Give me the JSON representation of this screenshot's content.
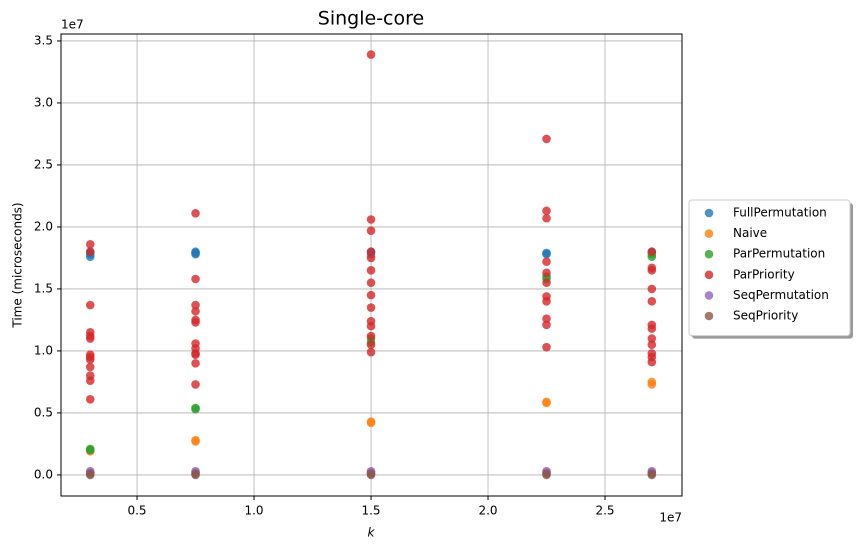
{
  "chart_data": {
    "type": "scatter",
    "title": "Single-core",
    "x_label": "k",
    "y_label": "Time (microseconds)",
    "x_offset": "1e7",
    "y_offset": "1e7",
    "xlim": [
      0.175,
      2.829
    ],
    "ylim": [
      -0.17,
      3.556
    ],
    "xticks": [
      0.5,
      {
        "value": 1.0,
        "label": "1.0"
      },
      1.5,
      {
        "value": 2.0,
        "label": "2.0"
      },
      2.5
    ],
    "yticks": [
      {
        "value": 0.0,
        "label": "0.0"
      },
      0.5,
      {
        "value": 1.0,
        "label": "1.0"
      },
      1.5,
      {
        "value": 2.0,
        "label": "2.0"
      },
      2.5,
      {
        "value": 3.0,
        "label": "3.0"
      },
      3.5
    ],
    "grid": true,
    "legend": "outside right",
    "series": [
      {
        "name": "FullPermutation",
        "color": "#1f77b4",
        "x": [
          0.3,
          0.3,
          0.3,
          0.75,
          0.75,
          0.75,
          1.5,
          1.5,
          2.25,
          2.25,
          2.7
        ],
        "values": [
          1.8,
          1.78,
          1.76,
          1.8,
          1.79,
          1.78,
          1.8,
          1.78,
          1.79,
          1.78,
          1.8
        ]
      },
      {
        "name": "Naive",
        "color": "#ff7f0e",
        "x": [
          0.3,
          0.3,
          0.75,
          0.75,
          1.5,
          1.5,
          2.25,
          2.25,
          2.7,
          2.7
        ],
        "values": [
          0.19,
          0.2,
          0.27,
          0.28,
          0.42,
          0.43,
          0.58,
          0.59,
          0.73,
          0.75
        ]
      },
      {
        "name": "ParPermutation",
        "color": "#2ca02c",
        "x": [
          0.3,
          0.3,
          0.75,
          0.75,
          1.5,
          1.5,
          2.25,
          2.25,
          2.7,
          2.7
        ],
        "values": [
          0.21,
          0.2,
          0.53,
          0.54,
          1.07,
          1.1,
          1.6,
          1.58,
          1.78,
          1.76
        ]
      },
      {
        "name": "ParPriority",
        "color": "#d62728",
        "x": [
          0.3,
          0.3,
          0.3,
          0.3,
          0.3,
          0.3,
          0.3,
          0.3,
          0.3,
          0.3,
          0.3,
          0.3,
          0.3,
          0.75,
          0.75,
          0.75,
          0.75,
          0.75,
          0.75,
          0.75,
          0.75,
          0.75,
          0.75,
          0.75,
          0.75,
          1.5,
          1.5,
          1.5,
          1.5,
          1.5,
          1.5,
          1.5,
          1.5,
          1.5,
          1.5,
          1.5,
          1.5,
          1.5,
          1.5,
          2.25,
          2.25,
          2.25,
          2.25,
          2.25,
          2.25,
          2.25,
          2.25,
          2.25,
          2.25,
          2.25,
          2.7,
          2.7,
          2.7,
          2.7,
          2.7,
          2.7,
          2.7,
          2.7,
          2.7,
          2.7,
          2.7,
          2.7
        ],
        "values": [
          1.86,
          1.8,
          1.37,
          1.15,
          1.12,
          1.1,
          0.97,
          0.95,
          0.93,
          0.87,
          0.8,
          0.76,
          0.61,
          2.11,
          1.58,
          1.37,
          1.32,
          1.25,
          1.23,
          1.06,
          1.02,
          0.98,
          0.97,
          0.9,
          0.73,
          3.39,
          2.06,
          1.97,
          1.8,
          1.75,
          1.65,
          1.55,
          1.45,
          1.35,
          1.24,
          1.2,
          1.12,
          1.05,
          0.99,
          2.71,
          2.13,
          2.07,
          1.72,
          1.63,
          1.55,
          1.44,
          1.4,
          1.26,
          1.21,
          1.03,
          1.8,
          1.67,
          1.65,
          1.5,
          1.4,
          1.21,
          1.18,
          1.1,
          1.05,
          0.98,
          0.95,
          0.91
        ]
      },
      {
        "name": "SeqPermutation",
        "color": "#9467bd",
        "x": [
          0.3,
          0.3,
          0.75,
          0.75,
          1.5,
          1.5,
          2.25,
          2.25,
          2.7,
          2.7
        ],
        "values": [
          0.03,
          0.02,
          0.03,
          0.02,
          0.03,
          0.02,
          0.03,
          0.02,
          0.03,
          0.02
        ]
      },
      {
        "name": "SeqPriority",
        "color": "#8c564b",
        "x": [
          0.3,
          0.3,
          0.75,
          0.75,
          1.5,
          1.5,
          2.25,
          2.25,
          2.7,
          2.7
        ],
        "values": [
          0.0,
          0.01,
          0.0,
          0.01,
          0.0,
          0.01,
          0.0,
          0.01,
          0.0,
          0.01
        ]
      }
    ]
  }
}
